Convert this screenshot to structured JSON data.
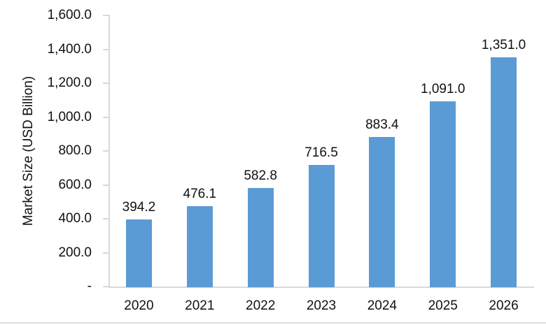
{
  "chart_data": {
    "type": "bar",
    "title": "",
    "xlabel": "",
    "ylabel": "Market Size (USD Billion)",
    "categories": [
      "2020",
      "2021",
      "2022",
      "2023",
      "2024",
      "2025",
      "2026"
    ],
    "values": [
      394.2,
      476.1,
      582.8,
      716.5,
      883.4,
      1091.0,
      1351.0
    ],
    "value_labels": [
      "394.2",
      "476.1",
      "582.8",
      "716.5",
      "883.4",
      "1,091.0",
      "1,351.0"
    ],
    "ylim": [
      0,
      1600
    ],
    "ytick_interval": 200,
    "yticks": [
      {
        "value": 0,
        "label": "-"
      },
      {
        "value": 200,
        "label": "200.0"
      },
      {
        "value": 400,
        "label": "400.0"
      },
      {
        "value": 600,
        "label": "600.0"
      },
      {
        "value": 800,
        "label": "800.0"
      },
      {
        "value": 1000,
        "label": "1,000.0"
      },
      {
        "value": 1200,
        "label": "1,200.0"
      },
      {
        "value": 1400,
        "label": "1,400.0"
      },
      {
        "value": 1600,
        "label": "1,600.0"
      }
    ],
    "grid": false,
    "legend": "none",
    "colors": {
      "bar": "#5B9BD5",
      "axis": "#D9D9D9",
      "text": "#111111"
    }
  }
}
